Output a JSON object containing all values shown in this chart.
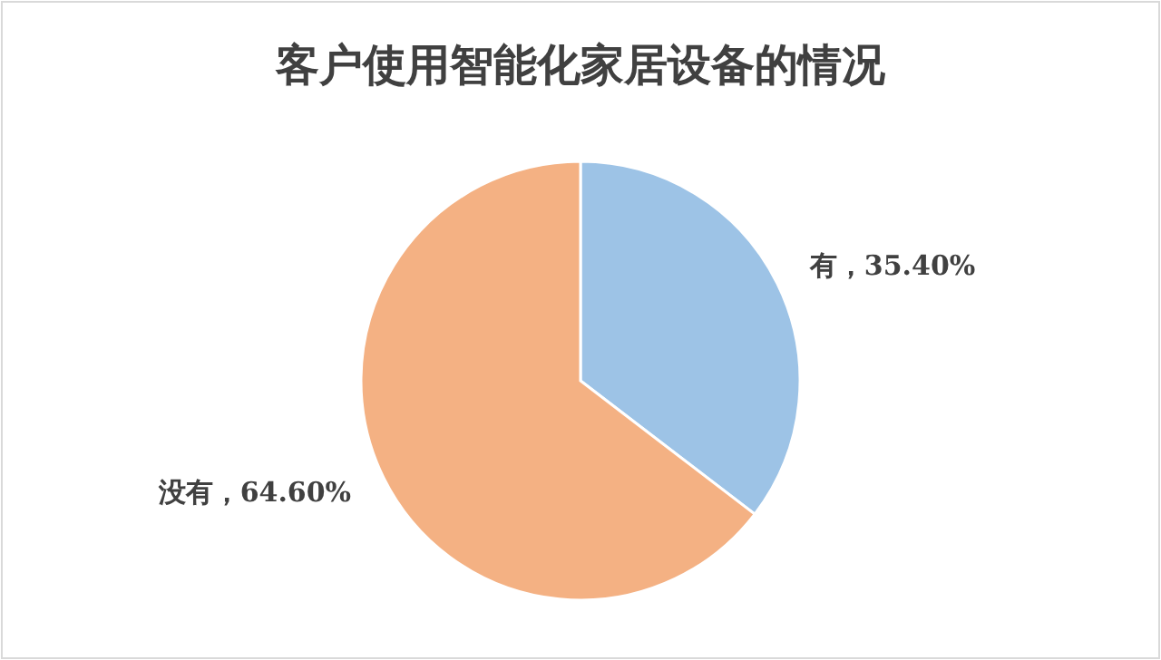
{
  "chart_data": {
    "type": "pie",
    "title": "客户使用智能化家居设备的情况",
    "categories": [
      "有",
      "没有"
    ],
    "values": [
      35.4,
      64.6
    ],
    "colors": [
      "#9dc3e6",
      "#f4b183"
    ],
    "value_labels": [
      "，35.40%",
      "，64.60%"
    ],
    "legend": false
  }
}
